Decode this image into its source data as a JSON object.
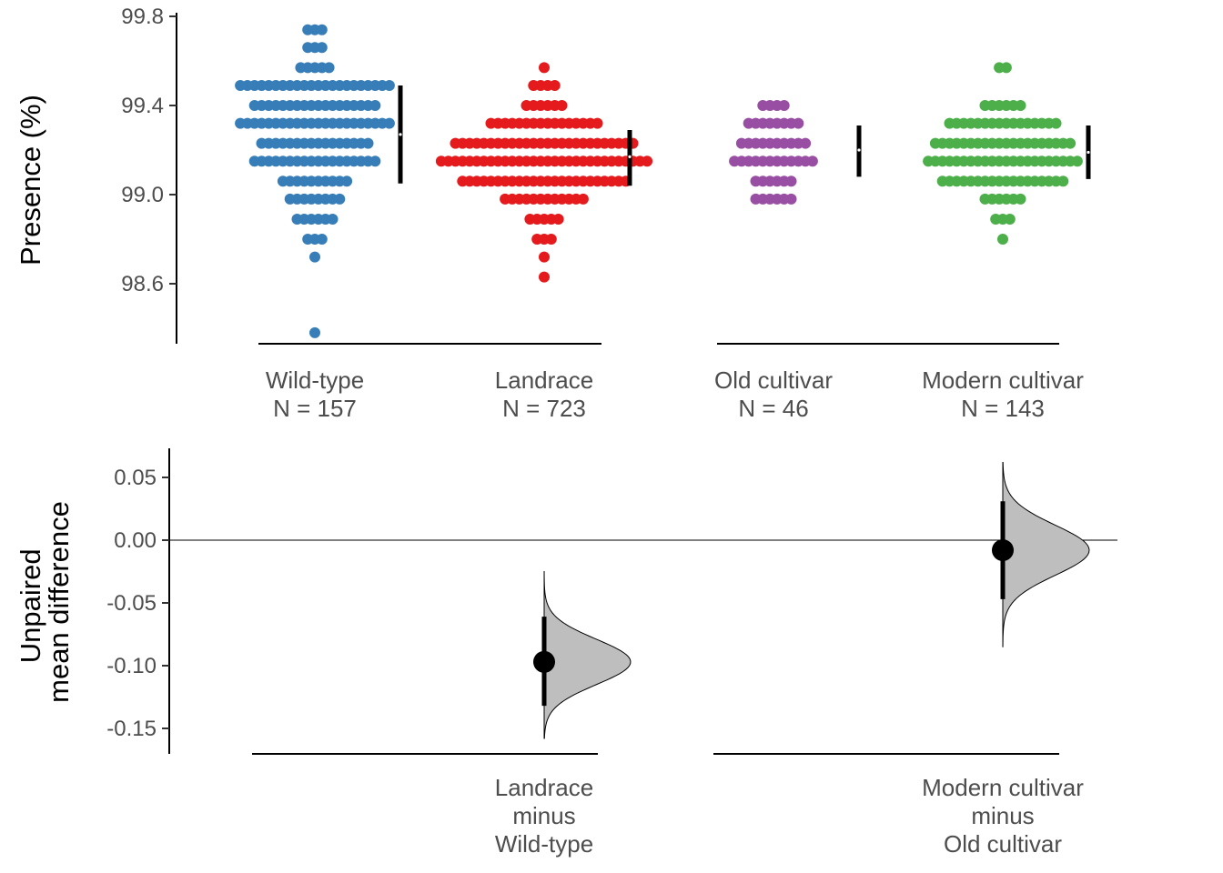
{
  "chart_data": [
    {
      "type": "scatter",
      "subtype": "swarm",
      "ylabel": "Presence (%)",
      "ylim": [
        98.35,
        99.8
      ],
      "yticks": [
        "99.8",
        "99.4",
        "99.0",
        "98.6"
      ],
      "groups": [
        {
          "name": "Wild-type",
          "n_label": "N = 157",
          "color": "#377eb8",
          "mean": 99.27,
          "sd_low": 99.05,
          "sd_high": 99.49,
          "bins": [
            {
              "y": 99.74,
              "count": 3
            },
            {
              "y": 99.66,
              "count": 3
            },
            {
              "y": 99.57,
              "count": 5
            },
            {
              "y": 99.49,
              "count": 22
            },
            {
              "y": 99.4,
              "count": 18
            },
            {
              "y": 99.32,
              "count": 22
            },
            {
              "y": 99.23,
              "count": 16
            },
            {
              "y": 99.15,
              "count": 18
            },
            {
              "y": 99.06,
              "count": 10
            },
            {
              "y": 98.98,
              "count": 8
            },
            {
              "y": 98.89,
              "count": 6
            },
            {
              "y": 98.8,
              "count": 3
            },
            {
              "y": 98.72,
              "count": 1
            },
            {
              "y": 98.38,
              "count": 1
            }
          ]
        },
        {
          "name": "Landrace",
          "n_label": "N = 723",
          "color": "#e41a1c",
          "mean": 99.17,
          "sd_low": 99.04,
          "sd_high": 99.29,
          "bins": [
            {
              "y": 99.57,
              "count": 1
            },
            {
              "y": 99.49,
              "count": 4
            },
            {
              "y": 99.4,
              "count": 6
            },
            {
              "y": 99.32,
              "count": 16
            },
            {
              "y": 99.23,
              "count": 26
            },
            {
              "y": 99.15,
              "count": 30
            },
            {
              "y": 99.06,
              "count": 24
            },
            {
              "y": 98.98,
              "count": 12
            },
            {
              "y": 98.89,
              "count": 5
            },
            {
              "y": 98.8,
              "count": 3
            },
            {
              "y": 98.72,
              "count": 1
            },
            {
              "y": 98.63,
              "count": 1
            }
          ]
        },
        {
          "name": "Old cultivar",
          "n_label": "N = 46",
          "color": "#984ea3",
          "mean": 99.2,
          "sd_low": 99.08,
          "sd_high": 99.31,
          "bins": [
            {
              "y": 99.4,
              "count": 4
            },
            {
              "y": 99.32,
              "count": 8
            },
            {
              "y": 99.23,
              "count": 10
            },
            {
              "y": 99.15,
              "count": 12
            },
            {
              "y": 99.06,
              "count": 6
            },
            {
              "y": 98.98,
              "count": 6
            }
          ]
        },
        {
          "name": "Modern cultivar",
          "n_label": "N = 143",
          "color": "#4daf4a",
          "mean": 99.19,
          "sd_low": 99.07,
          "sd_high": 99.31,
          "bins": [
            {
              "y": 99.57,
              "count": 2
            },
            {
              "y": 99.4,
              "count": 6
            },
            {
              "y": 99.32,
              "count": 16
            },
            {
              "y": 99.23,
              "count": 20
            },
            {
              "y": 99.15,
              "count": 22
            },
            {
              "y": 99.06,
              "count": 18
            },
            {
              "y": 98.98,
              "count": 6
            },
            {
              "y": 98.89,
              "count": 3
            },
            {
              "y": 98.8,
              "count": 1
            }
          ]
        }
      ]
    },
    {
      "type": "area",
      "subtype": "bootstrap-distribution",
      "ylabel_line1": "Unpaired",
      "ylabel_line2": "mean difference",
      "ylim": [
        -0.17,
        0.072
      ],
      "yticks": [
        "0.05",
        "0.00",
        "-0.05",
        "-0.10",
        "-0.15"
      ],
      "zero_line": true,
      "comparisons": [
        {
          "label_line1": "Landrace",
          "label_line2": "minus",
          "label_line3": "Wild-type",
          "group_index": 1,
          "estimate": -0.097,
          "ci_low": -0.132,
          "ci_high": -0.061,
          "dist_min": -0.158,
          "dist_max": -0.025,
          "dist_sd": 0.018
        },
        {
          "label_line1": "Modern cultivar",
          "label_line2": "minus",
          "label_line3": "Old cultivar",
          "group_index": 3,
          "estimate": -0.008,
          "ci_low": -0.047,
          "ci_high": 0.031,
          "dist_min": -0.085,
          "dist_max": 0.062,
          "dist_sd": 0.02
        }
      ]
    }
  ]
}
